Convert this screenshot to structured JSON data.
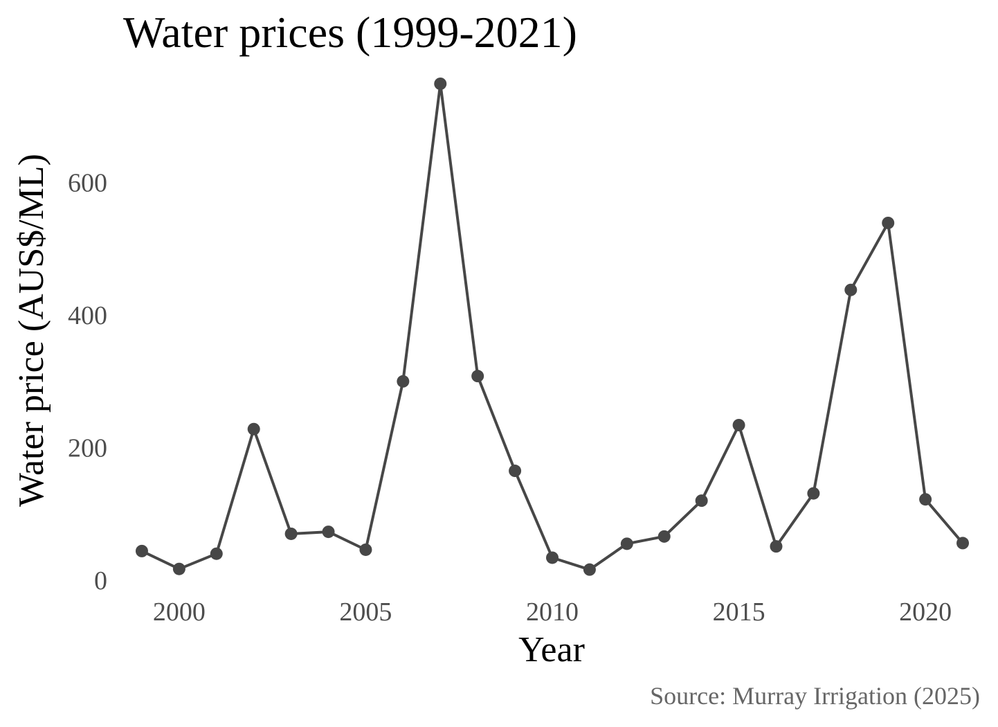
{
  "chart_data": {
    "type": "line",
    "title": "Water prices (1999-2021)",
    "xlabel": "Year",
    "ylabel": "Water price (AUS$/ML)",
    "caption": "Source: Murray Irrigation (2025)",
    "x_ticks": [
      "2000",
      "2005",
      "2010",
      "2015",
      "2020"
    ],
    "y_ticks": [
      "0",
      "200",
      "400",
      "600"
    ],
    "xlim": [
      1998.5,
      2021.5
    ],
    "ylim": [
      0,
      750
    ],
    "grid": false,
    "legend": "none",
    "series": [
      {
        "color": "#474747",
        "x": [
          1999,
          2000,
          2001,
          2002,
          2003,
          2004,
          2005,
          2006,
          2007,
          2008,
          2009,
          2010,
          2011,
          2012,
          2013,
          2014,
          2015,
          2016,
          2017,
          2018,
          2019,
          2020,
          2021
        ],
        "y": [
          44,
          17,
          40,
          228,
          70,
          73,
          46,
          300,
          749,
          308,
          165,
          34,
          16,
          55,
          66,
          120,
          234,
          51,
          131,
          438,
          539,
          122,
          56
        ]
      }
    ]
  }
}
